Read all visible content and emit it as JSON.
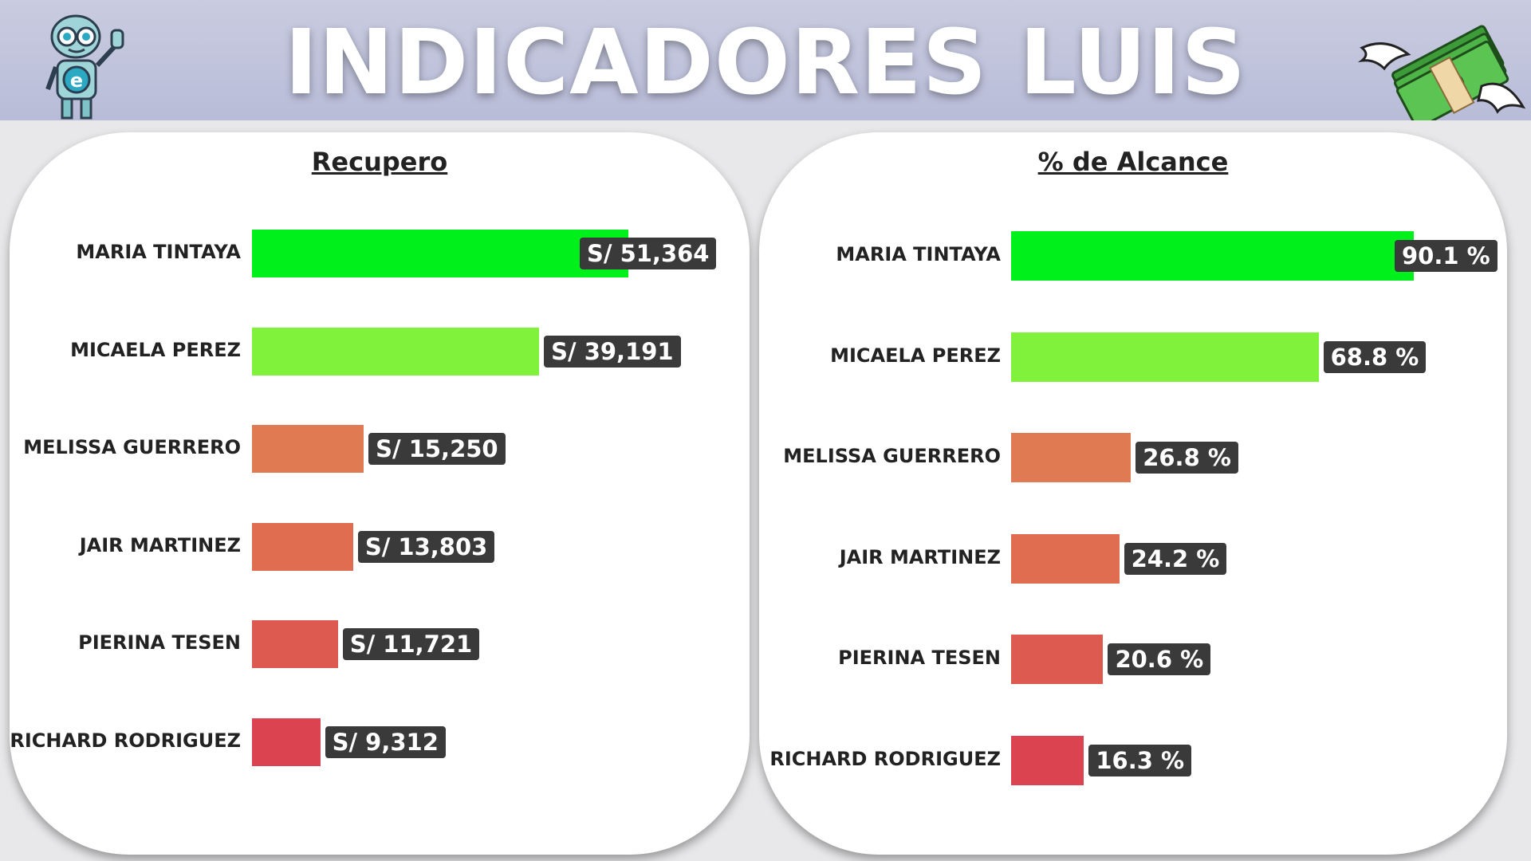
{
  "header": {
    "title": "INDICADORES LUIS",
    "left_icon": "robot-mascot-icon",
    "right_icon": "flying-money-icon"
  },
  "chart_data": [
    {
      "type": "bar",
      "orientation": "horizontal",
      "title": "Recupero",
      "categories": [
        "MARIA TINTAYA",
        "MICAELA PEREZ",
        "MELISSA GUERRERO",
        "JAIR MARTINEZ",
        "PIERINA TESEN",
        "RICHARD RODRIGUEZ"
      ],
      "values": [
        51364,
        39191,
        15250,
        13803,
        11721,
        9312
      ],
      "labels": [
        "S/ 51,364",
        "S/ 39,191",
        "S/ 15,250",
        "S/ 13,803",
        "S/ 11,721",
        "S/ 9,312"
      ],
      "colors": [
        "#00f01c",
        "#80f23c",
        "#e07a52",
        "#e06d50",
        "#dd5a50",
        "#db4350"
      ],
      "xlim": [
        0,
        51364
      ],
      "grid": false
    },
    {
      "type": "bar",
      "orientation": "horizontal",
      "title": "% de Alcance",
      "categories": [
        "MARIA TINTAYA",
        "MICAELA PEREZ",
        "MELISSA GUERRERO",
        "JAIR MARTINEZ",
        "PIERINA TESEN",
        "RICHARD RODRIGUEZ"
      ],
      "values": [
        90.1,
        68.8,
        26.8,
        24.2,
        20.6,
        16.3
      ],
      "labels": [
        "90.1 %",
        "68.8 %",
        "26.8 %",
        "24.2 %",
        "20.6 %",
        "16.3 %"
      ],
      "colors": [
        "#00f01c",
        "#80f23c",
        "#e07a52",
        "#e06d50",
        "#dd5a50",
        "#db4350"
      ],
      "xlim": [
        0,
        90.1
      ],
      "grid": false
    }
  ]
}
